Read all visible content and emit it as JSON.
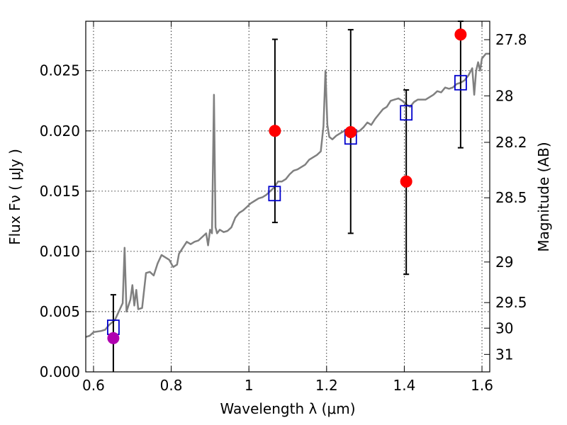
{
  "chart_data": {
    "type": "scatter",
    "xlabel": "Wavelength  λ (μm)",
    "ylabel_left": "Flux  Fν  ( μJy )",
    "ylabel_right": "Magnitude (AB)",
    "xlim": [
      0.58,
      1.62
    ],
    "ylim": [
      0.0,
      0.0291
    ],
    "x_ticks": [
      0.6,
      0.8,
      1.0,
      1.2,
      1.4,
      1.6
    ],
    "x_tick_labels": [
      "0.6",
      "0.8",
      "1",
      "1.2",
      "1.4",
      "1.6"
    ],
    "y_ticks": [
      0.0,
      0.005,
      0.01,
      0.015,
      0.02,
      0.025
    ],
    "y_tick_labels": [
      "0.000",
      "0.005",
      "0.010",
      "0.015",
      "0.020",
      "0.025"
    ],
    "right_ticks": [
      {
        "label": "27.8",
        "flux": 0.02757
      },
      {
        "label": "28",
        "flux": 0.02291
      },
      {
        "label": "28.2",
        "flux": 0.01905
      },
      {
        "label": "28.5",
        "flux": 0.01445
      },
      {
        "label": "29",
        "flux": 0.00912
      },
      {
        "label": "29.5",
        "flux": 0.00575
      },
      {
        "label": "30",
        "flux": 0.00363
      },
      {
        "label": "31",
        "flux": 0.00145
      }
    ],
    "grid": true,
    "series": [
      {
        "kind": "line",
        "color": "#808080",
        "points": [
          [
            0.58,
            0.0029
          ],
          [
            0.59,
            0.003
          ],
          [
            0.6,
            0.0033
          ],
          [
            0.62,
            0.0034
          ],
          [
            0.63,
            0.0035
          ],
          [
            0.64,
            0.0039
          ],
          [
            0.655,
            0.0043
          ],
          [
            0.665,
            0.005
          ],
          [
            0.675,
            0.0057
          ],
          [
            0.68,
            0.0103
          ],
          [
            0.685,
            0.005
          ],
          [
            0.695,
            0.006
          ],
          [
            0.7,
            0.0072
          ],
          [
            0.705,
            0.0055
          ],
          [
            0.71,
            0.0068
          ],
          [
            0.715,
            0.0052
          ],
          [
            0.725,
            0.0053
          ],
          [
            0.735,
            0.0082
          ],
          [
            0.745,
            0.0083
          ],
          [
            0.755,
            0.008
          ],
          [
            0.765,
            0.009
          ],
          [
            0.775,
            0.0097
          ],
          [
            0.785,
            0.0095
          ],
          [
            0.795,
            0.0093
          ],
          [
            0.805,
            0.0087
          ],
          [
            0.815,
            0.0089
          ],
          [
            0.82,
            0.0098
          ],
          [
            0.83,
            0.0103
          ],
          [
            0.84,
            0.0108
          ],
          [
            0.85,
            0.0106
          ],
          [
            0.86,
            0.0108
          ],
          [
            0.87,
            0.0109
          ],
          [
            0.88,
            0.0112
          ],
          [
            0.89,
            0.0115
          ],
          [
            0.895,
            0.0105
          ],
          [
            0.9,
            0.0118
          ],
          [
            0.905,
            0.0115
          ],
          [
            0.91,
            0.023
          ],
          [
            0.914,
            0.012
          ],
          [
            0.918,
            0.0115
          ],
          [
            0.925,
            0.0118
          ],
          [
            0.935,
            0.0116
          ],
          [
            0.945,
            0.0117
          ],
          [
            0.955,
            0.012
          ],
          [
            0.965,
            0.0128
          ],
          [
            0.975,
            0.0132
          ],
          [
            0.985,
            0.0134
          ],
          [
            0.995,
            0.0137
          ],
          [
            1.005,
            0.014
          ],
          [
            1.015,
            0.0142
          ],
          [
            1.025,
            0.0144
          ],
          [
            1.035,
            0.0145
          ],
          [
            1.045,
            0.0147
          ],
          [
            1.055,
            0.015
          ],
          [
            1.065,
            0.0153
          ],
          [
            1.075,
            0.0158
          ],
          [
            1.085,
            0.0158
          ],
          [
            1.095,
            0.016
          ],
          [
            1.105,
            0.0164
          ],
          [
            1.115,
            0.0167
          ],
          [
            1.125,
            0.0168
          ],
          [
            1.135,
            0.017
          ],
          [
            1.145,
            0.0172
          ],
          [
            1.155,
            0.0176
          ],
          [
            1.165,
            0.0178
          ],
          [
            1.175,
            0.018
          ],
          [
            1.185,
            0.0183
          ],
          [
            1.192,
            0.0204
          ],
          [
            1.197,
            0.025
          ],
          [
            1.202,
            0.0205
          ],
          [
            1.207,
            0.0195
          ],
          [
            1.215,
            0.0193
          ],
          [
            1.225,
            0.0196
          ],
          [
            1.235,
            0.0198
          ],
          [
            1.245,
            0.02
          ],
          [
            1.255,
            0.02
          ],
          [
            1.265,
            0.0202
          ],
          [
            1.275,
            0.0199
          ],
          [
            1.285,
            0.02
          ],
          [
            1.295,
            0.0203
          ],
          [
            1.305,
            0.0207
          ],
          [
            1.315,
            0.0205
          ],
          [
            1.325,
            0.021
          ],
          [
            1.335,
            0.0214
          ],
          [
            1.345,
            0.0218
          ],
          [
            1.355,
            0.022
          ],
          [
            1.365,
            0.0225
          ],
          [
            1.375,
            0.0226
          ],
          [
            1.385,
            0.0227
          ],
          [
            1.395,
            0.0225
          ],
          [
            1.405,
            0.0222
          ],
          [
            1.415,
            0.022
          ],
          [
            1.425,
            0.0224
          ],
          [
            1.435,
            0.0226
          ],
          [
            1.445,
            0.0226
          ],
          [
            1.455,
            0.0226
          ],
          [
            1.465,
            0.0228
          ],
          [
            1.475,
            0.023
          ],
          [
            1.485,
            0.0233
          ],
          [
            1.495,
            0.0232
          ],
          [
            1.505,
            0.0236
          ],
          [
            1.515,
            0.0235
          ],
          [
            1.525,
            0.0236
          ],
          [
            1.535,
            0.0239
          ],
          [
            1.545,
            0.024
          ],
          [
            1.555,
            0.0242
          ],
          [
            1.565,
            0.0246
          ],
          [
            1.575,
            0.0252
          ],
          [
            1.58,
            0.023
          ],
          [
            1.585,
            0.025
          ],
          [
            1.59,
            0.0257
          ],
          [
            1.595,
            0.025
          ],
          [
            1.6,
            0.026
          ],
          [
            1.61,
            0.0264
          ],
          [
            1.62,
            0.0264
          ]
        ]
      },
      {
        "kind": "open-square",
        "color": "#0000cc",
        "points": [
          [
            0.651,
            0.0037
          ],
          [
            1.066,
            0.0148
          ],
          [
            1.262,
            0.0195
          ],
          [
            1.405,
            0.0215
          ],
          [
            1.545,
            0.024
          ]
        ]
      },
      {
        "kind": "circle",
        "color": "#ff0000",
        "points": [
          [
            1.067,
            0.02
          ],
          [
            1.262,
            0.0199
          ],
          [
            1.405,
            0.0158
          ],
          [
            1.545,
            0.028
          ]
        ]
      },
      {
        "kind": "circle",
        "color": "#b000b0",
        "points": [
          [
            0.651,
            0.0028
          ]
        ]
      },
      {
        "kind": "errorbar",
        "color": "#000000",
        "bars": [
          {
            "x": 0.651,
            "low": 0.0,
            "high": 0.0064
          },
          {
            "x": 1.067,
            "low": 0.0124,
            "high": 0.0276
          },
          {
            "x": 1.262,
            "low": 0.0115,
            "high": 0.0284
          },
          {
            "x": 1.405,
            "low": 0.0081,
            "high": 0.0234
          },
          {
            "x": 1.545,
            "low": 0.0186,
            "high": 0.0291
          }
        ]
      }
    ]
  }
}
